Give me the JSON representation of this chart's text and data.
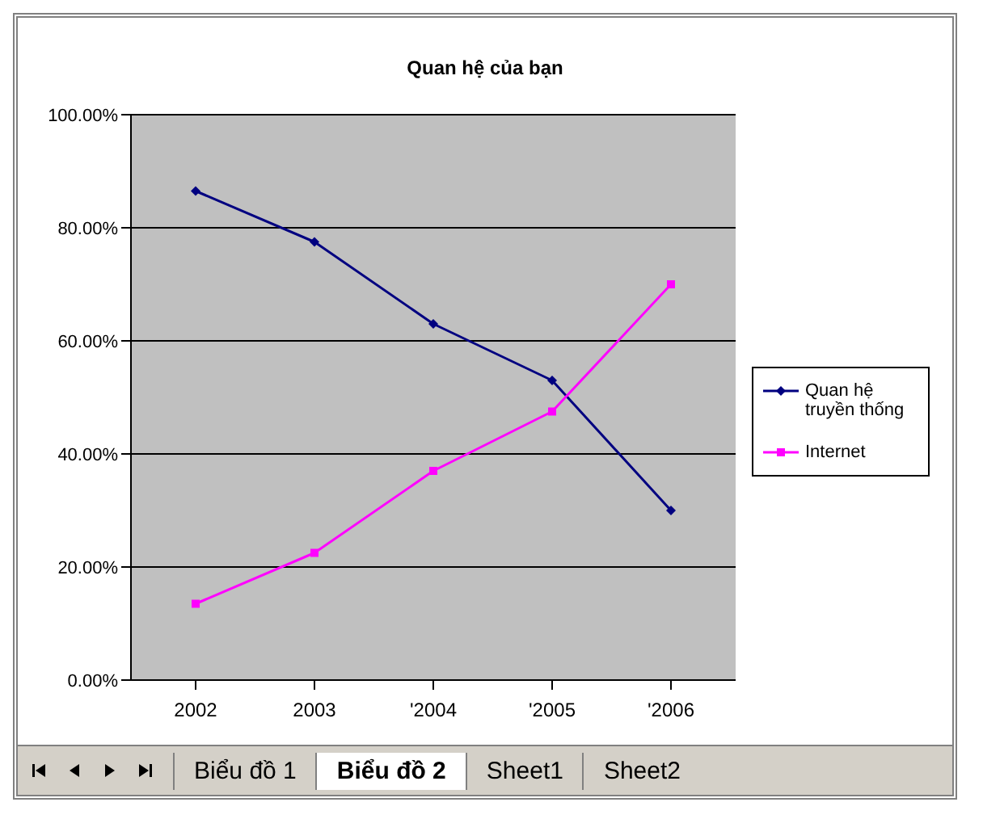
{
  "chart_data": {
    "type": "line",
    "title": "Quan hệ của bạn",
    "categories": [
      "2002",
      "2003",
      "'2004",
      "'2005",
      "'2006"
    ],
    "series": [
      {
        "name": "Quan hệ truyền thống",
        "color": "#000080",
        "marker": "diamond",
        "values": [
          86.5,
          77.5,
          63,
          53,
          30
        ]
      },
      {
        "name": "Internet",
        "color": "#ff00ff",
        "marker": "square",
        "values": [
          13.5,
          22.5,
          37,
          47.5,
          70
        ]
      }
    ],
    "ylim": [
      0,
      100
    ],
    "yticks": [
      {
        "value": 0,
        "label": "0.00%"
      },
      {
        "value": 20,
        "label": "20.00%"
      },
      {
        "value": 40,
        "label": "40.00%"
      },
      {
        "value": 60,
        "label": "60.00%"
      },
      {
        "value": 80,
        "label": "80.00%"
      },
      {
        "value": 100,
        "label": "100.00%"
      }
    ],
    "grid": "y",
    "legend": "right",
    "annotations": [
      "Biểu đồ 1",
      "Biểu đồ 2",
      "Sheet1",
      "Sheet2"
    ]
  }
}
